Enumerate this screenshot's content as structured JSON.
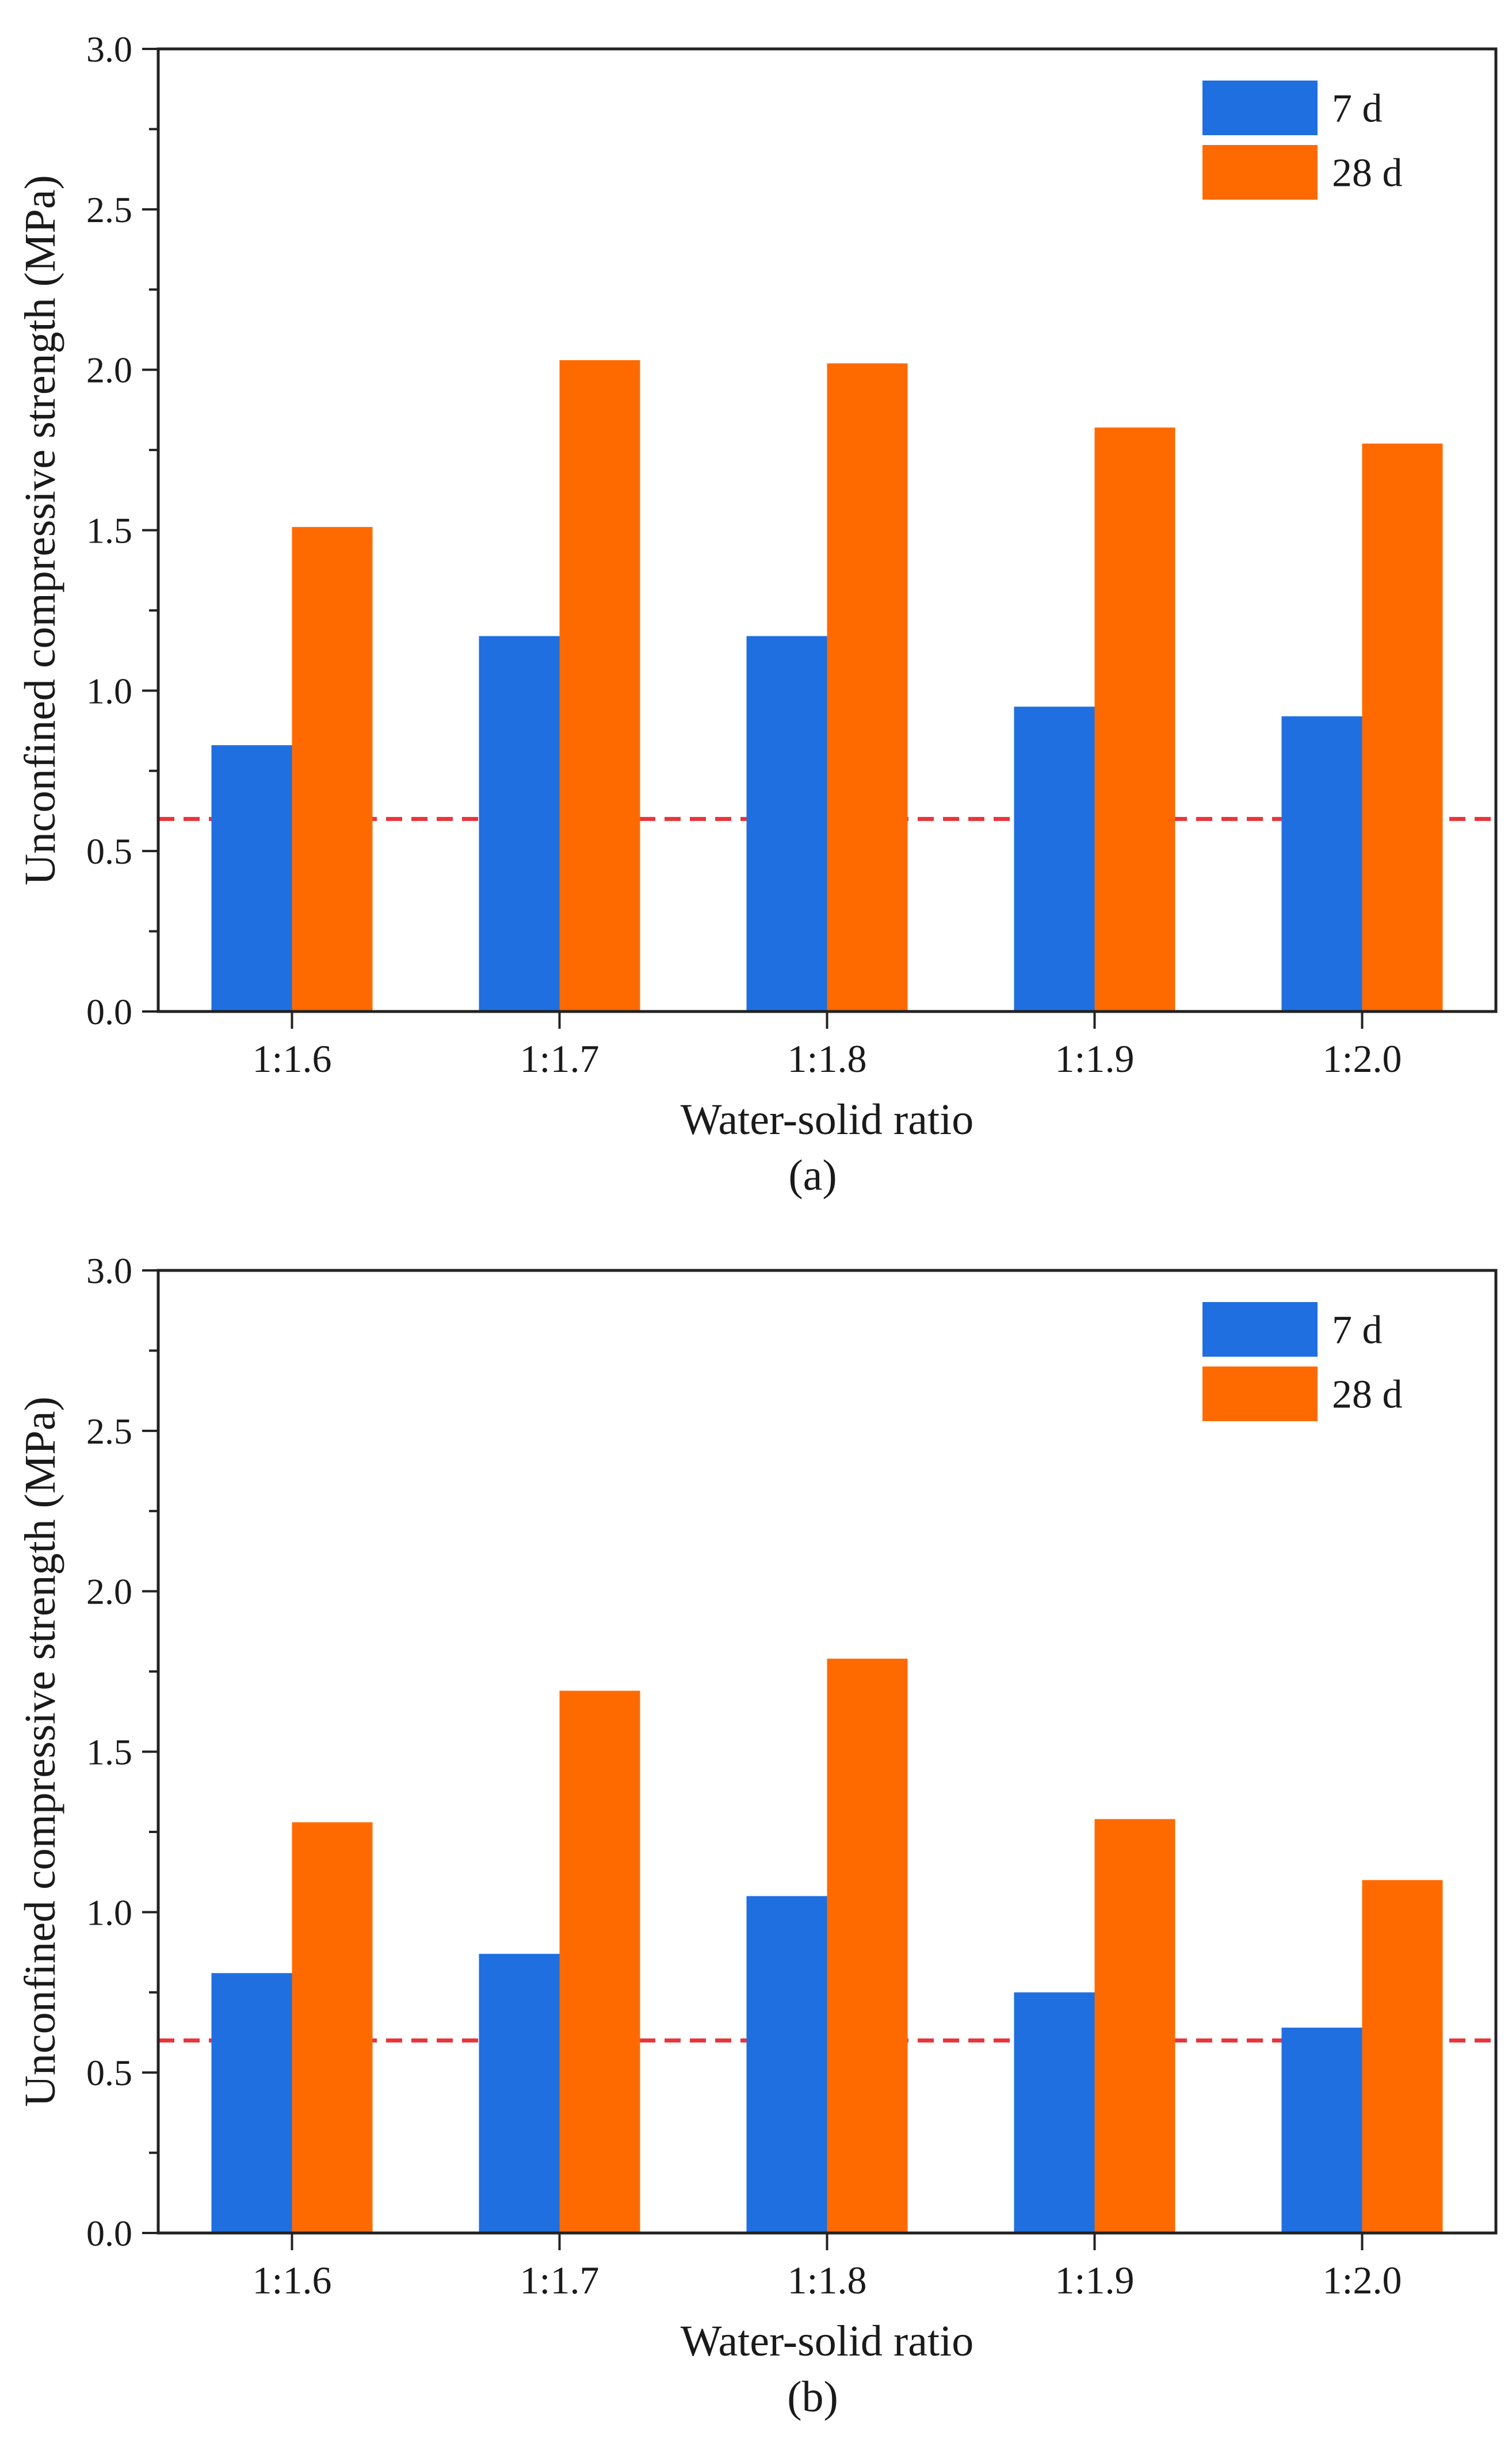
{
  "chart_data": [
    {
      "type": "bar",
      "panel_label": "a",
      "caption": "(a)",
      "categories": [
        "1:1.6",
        "1:1.7",
        "1:1.8",
        "1:1.9",
        "1:2.0"
      ],
      "series": [
        {
          "name": "7 d",
          "color": "#1f6fe0",
          "values": [
            0.83,
            1.17,
            1.17,
            0.95,
            0.92
          ]
        },
        {
          "name": "28 d",
          "color": "#ff6a00",
          "values": [
            1.51,
            2.03,
            2.02,
            1.82,
            1.77
          ]
        }
      ],
      "reference_line": {
        "value": 0.6,
        "color": "#e8343a",
        "style": "dashed"
      },
      "xlabel": "Water-solid ratio",
      "ylabel": "Unconfined compressive strength (MPa)",
      "ylim": [
        0,
        3.0
      ],
      "yticks": [
        "0.0",
        "0.5",
        "1.0",
        "1.5",
        "2.0",
        "2.5",
        "3.0"
      ],
      "legend": "top-right",
      "grid": false
    },
    {
      "type": "bar",
      "panel_label": "b",
      "caption": "(b)",
      "categories": [
        "1:1.6",
        "1:1.7",
        "1:1.8",
        "1:1.9",
        "1:2.0"
      ],
      "series": [
        {
          "name": "7 d",
          "color": "#1f6fe0",
          "values": [
            0.81,
            0.87,
            1.05,
            0.75,
            0.64
          ]
        },
        {
          "name": "28 d",
          "color": "#ff6a00",
          "values": [
            1.28,
            1.69,
            1.79,
            1.29,
            1.1
          ]
        }
      ],
      "reference_line": {
        "value": 0.6,
        "color": "#e8343a",
        "style": "dashed"
      },
      "xlabel": "Water-solid ratio",
      "ylabel": "Unconfined compressive strength (MPa)",
      "ylim": [
        0,
        3.0
      ],
      "yticks": [
        "0.0",
        "0.5",
        "1.0",
        "1.5",
        "2.0",
        "2.5",
        "3.0"
      ],
      "legend": "top-right",
      "grid": false
    }
  ]
}
